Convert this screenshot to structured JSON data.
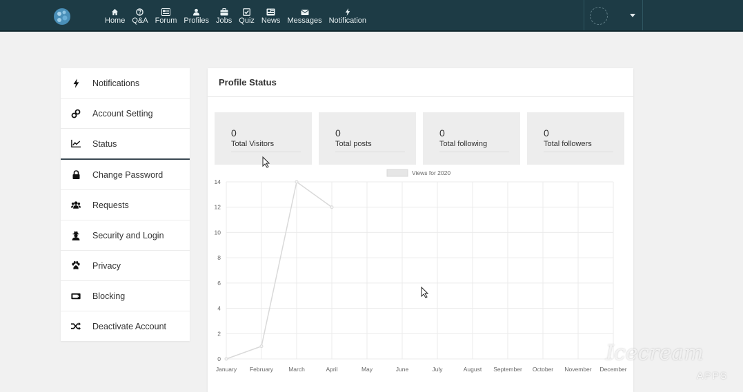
{
  "nav": {
    "items": [
      {
        "label": "Home",
        "icon": "home-icon"
      },
      {
        "label": "Q&A",
        "icon": "question-icon"
      },
      {
        "label": "Forum",
        "icon": "forum-icon"
      },
      {
        "label": "Profiles",
        "icon": "profiles-icon"
      },
      {
        "label": "Jobs",
        "icon": "briefcase-icon"
      },
      {
        "label": "Quiz",
        "icon": "check-square-icon"
      },
      {
        "label": "News",
        "icon": "news-icon"
      },
      {
        "label": "Messages",
        "icon": "envelope-icon"
      },
      {
        "label": "Notification",
        "icon": "bolt-icon"
      }
    ]
  },
  "sidebar": {
    "items": [
      {
        "label": "Notifications",
        "icon": "bolt-icon"
      },
      {
        "label": "Account Setting",
        "icon": "link-icon"
      },
      {
        "label": "Status",
        "icon": "line-chart-icon",
        "active": true
      },
      {
        "label": "Change Password",
        "icon": "lock-icon"
      },
      {
        "label": "Requests",
        "icon": "users-icon"
      },
      {
        "label": "Security and Login",
        "icon": "user-secret-icon"
      },
      {
        "label": "Privacy",
        "icon": "paw-icon"
      },
      {
        "label": "Blocking",
        "icon": "block-icon"
      },
      {
        "label": "Deactivate Account",
        "icon": "random-icon"
      }
    ]
  },
  "profile_status": {
    "title": "Profile Status",
    "stats": [
      {
        "value": "0",
        "label": "Total Visitors"
      },
      {
        "value": "0",
        "label": "Total posts"
      },
      {
        "value": "0",
        "label": "Total following"
      },
      {
        "value": "0",
        "label": "Total followers"
      }
    ]
  },
  "chart_data": {
    "type": "line",
    "categories": [
      "January",
      "February",
      "March",
      "April",
      "May",
      "June",
      "July",
      "August",
      "September",
      "October",
      "November",
      "December"
    ],
    "series": [
      {
        "name": "Views for 2020",
        "values": [
          0,
          1,
          14,
          12,
          null,
          null,
          null,
          null,
          null,
          null,
          null,
          null
        ]
      }
    ],
    "ylim": [
      0,
      14
    ],
    "yticks": [
      0,
      2,
      4,
      6,
      8,
      10,
      12,
      14
    ],
    "grid": true,
    "legend": "top-center",
    "colors": {
      "line": "#d9d9d9",
      "grid": "#ebebeb",
      "legend_box": "#e6e6e6"
    }
  },
  "colors": {
    "topbar": "#1d3b45",
    "background": "#f1f1f1"
  },
  "watermark": {
    "main": "Icecream",
    "sub": "APPS"
  }
}
